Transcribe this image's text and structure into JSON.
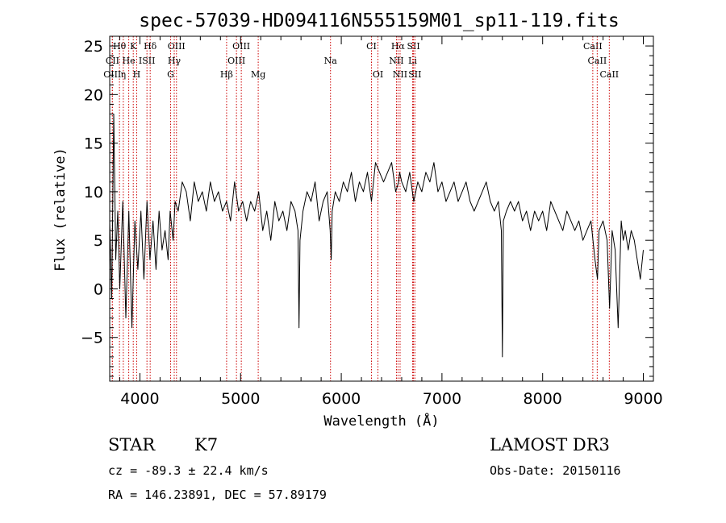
{
  "chart_data": {
    "type": "line",
    "title": "spec-57039-HD094116N555159M01_sp11-119.fits",
    "xlabel": "Wavelength (Å)",
    "ylabel": "Flux (relative)",
    "xlim": [
      3700,
      9100
    ],
    "ylim": [
      -9.5,
      26
    ],
    "xticks": [
      4000,
      5000,
      6000,
      7000,
      8000,
      9000
    ],
    "yticks": [
      -5,
      0,
      5,
      10,
      15,
      20,
      25
    ],
    "grid": false,
    "series": [
      {
        "name": "flux",
        "x": [
          3700,
          3720,
          3740,
          3760,
          3780,
          3800,
          3830,
          3860,
          3890,
          3920,
          3950,
          3980,
          4010,
          4040,
          4070,
          4100,
          4130,
          4160,
          4190,
          4220,
          4250,
          4280,
          4300,
          4330,
          4350,
          4380,
          4420,
          4460,
          4500,
          4540,
          4580,
          4620,
          4660,
          4700,
          4740,
          4780,
          4820,
          4860,
          4900,
          4940,
          4980,
          5020,
          5060,
          5100,
          5140,
          5180,
          5220,
          5260,
          5300,
          5340,
          5380,
          5420,
          5460,
          5500,
          5540,
          5570,
          5580,
          5590,
          5620,
          5660,
          5700,
          5740,
          5780,
          5820,
          5860,
          5890,
          5900,
          5910,
          5940,
          5980,
          6020,
          6060,
          6100,
          6140,
          6180,
          6220,
          6260,
          6300,
          6340,
          6380,
          6420,
          6460,
          6500,
          6540,
          6570,
          6580,
          6600,
          6640,
          6680,
          6720,
          6760,
          6800,
          6840,
          6880,
          6920,
          6960,
          7000,
          7040,
          7080,
          7120,
          7160,
          7200,
          7240,
          7280,
          7320,
          7360,
          7400,
          7440,
          7480,
          7520,
          7560,
          7590,
          7600,
          7610,
          7640,
          7680,
          7720,
          7760,
          7800,
          7840,
          7880,
          7920,
          7960,
          8000,
          8040,
          8080,
          8120,
          8160,
          8200,
          8240,
          8280,
          8320,
          8360,
          8400,
          8440,
          8480,
          8500,
          8520,
          8545,
          8560,
          8600,
          8640,
          8665,
          8690,
          8720,
          8750,
          8780,
          8800,
          8820,
          8850,
          8880,
          8910,
          8940,
          8970,
          9000
        ],
        "y": [
          7,
          -1,
          18,
          3,
          8,
          0,
          9,
          -3,
          8,
          -4,
          7,
          2,
          8,
          1,
          9,
          3,
          7,
          2,
          8,
          4,
          6,
          3,
          8,
          5,
          9,
          8,
          11,
          10,
          7,
          11,
          9,
          10,
          8,
          11,
          9,
          10,
          8,
          9,
          7,
          11,
          8,
          9,
          7,
          9,
          8,
          10,
          6,
          8,
          5,
          9,
          7,
          8,
          6,
          9,
          8,
          6,
          -4,
          5,
          8,
          10,
          9,
          11,
          7,
          9,
          10,
          6,
          3,
          8,
          10,
          9,
          11,
          10,
          12,
          9,
          11,
          10,
          12,
          9,
          13,
          12,
          11,
          12,
          13,
          10,
          11,
          12,
          11,
          10,
          12,
          9,
          11,
          10,
          12,
          11,
          13,
          10,
          11,
          9,
          10,
          11,
          9,
          10,
          11,
          9,
          8,
          9,
          10,
          11,
          9,
          8,
          9,
          6,
          -7,
          7,
          8,
          9,
          8,
          9,
          7,
          8,
          6,
          8,
          7,
          8,
          6,
          9,
          8,
          7,
          6,
          8,
          7,
          6,
          7,
          5,
          6,
          7,
          5,
          3,
          1,
          6,
          7,
          5,
          -2,
          6,
          4,
          -4,
          7,
          5,
          6,
          4,
          6,
          5,
          3,
          1,
          4
        ]
      }
    ],
    "lines": [
      {
        "label": "Hθ",
        "x": 3797,
        "row": 0
      },
      {
        "label": "K",
        "x": 3934,
        "row": 0
      },
      {
        "label": "Hδ",
        "x": 4102,
        "row": 0
      },
      {
        "label": "OIII",
        "x": 4363,
        "row": 0
      },
      {
        "label": "OIII",
        "x": 5007,
        "row": 0
      },
      {
        "label": "CI",
        "x": 6300,
        "row": 0
      },
      {
        "label": "Hα",
        "x": 6563,
        "row": 0
      },
      {
        "label": "SII",
        "x": 6717,
        "row": 0
      },
      {
        "label": "CaII",
        "x": 8498,
        "row": 0
      },
      {
        "label": "CII",
        "x": 3727,
        "row": 1
      },
      {
        "label": "He",
        "x": 3889,
        "row": 1
      },
      {
        "label": "ISII",
        "x": 4070,
        "row": 1
      },
      {
        "label": "Hγ",
        "x": 4341,
        "row": 1
      },
      {
        "label": "OIII",
        "x": 4959,
        "row": 1
      },
      {
        "label": "Na",
        "x": 5893,
        "row": 1
      },
      {
        "label": "NII",
        "x": 6548,
        "row": 1
      },
      {
        "label": "Li",
        "x": 6708,
        "row": 1
      },
      {
        "label": "CaII",
        "x": 8542,
        "row": 1
      },
      {
        "label": "OIII",
        "x": 3726,
        "row": 2
      },
      {
        "label": "η",
        "x": 3835,
        "row": 2
      },
      {
        "label": "H",
        "x": 3968,
        "row": 2
      },
      {
        "label": "G",
        "x": 4305,
        "row": 2
      },
      {
        "label": "Hβ",
        "x": 4861,
        "row": 2
      },
      {
        "label": "Mg",
        "x": 5175,
        "row": 2
      },
      {
        "label": "OI",
        "x": 6364,
        "row": 2
      },
      {
        "label": "NII",
        "x": 6584,
        "row": 2
      },
      {
        "label": "SII",
        "x": 6731,
        "row": 2
      },
      {
        "label": "CaII",
        "x": 8662,
        "row": 2
      }
    ],
    "line_color": "#cc0000"
  },
  "info": {
    "class": "STAR",
    "subclass": "K7",
    "survey": "LAMOST DR3",
    "cz": "cz = -89.3 ± 22.4 km/s",
    "obsdate": "Obs-Date: 20150116",
    "radec": "RA = 146.23891, DEC =  57.89179"
  }
}
